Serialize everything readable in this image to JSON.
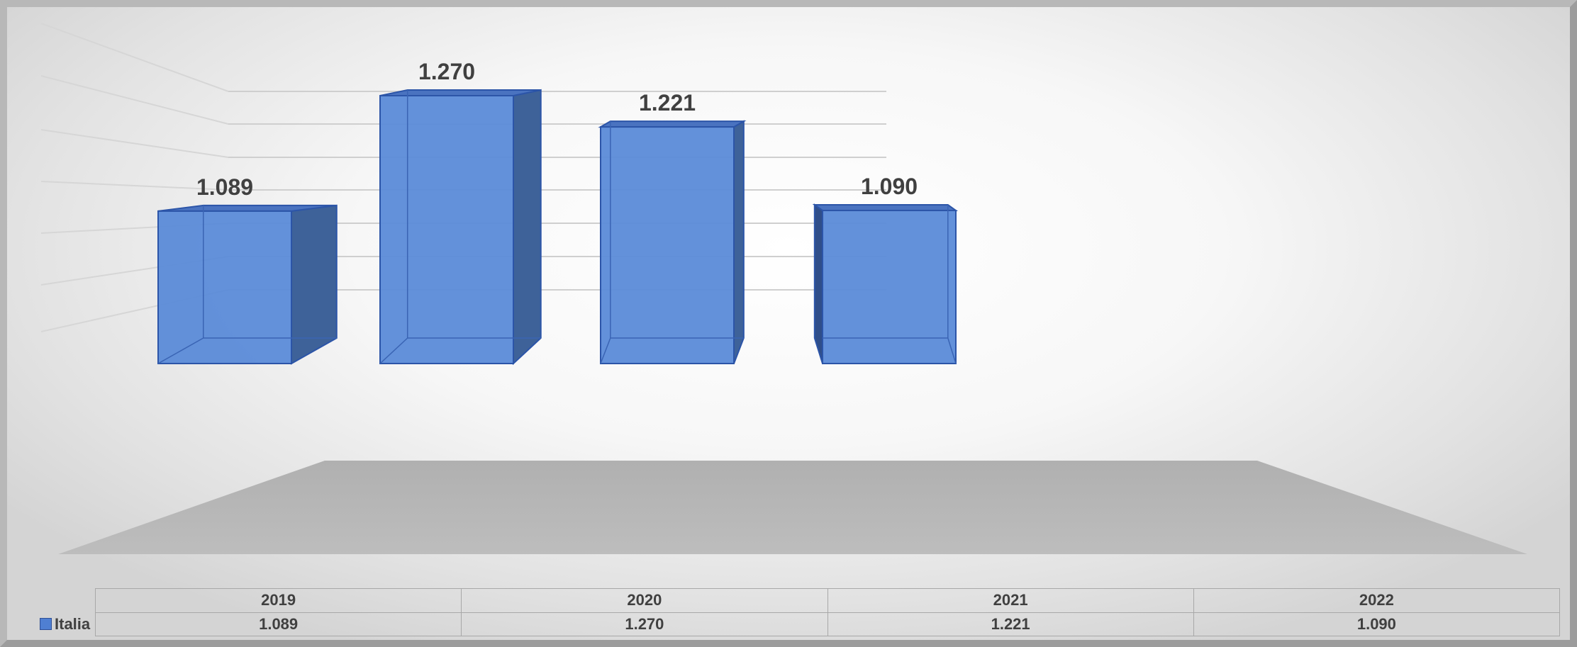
{
  "chart_data": {
    "type": "bar",
    "style": "3d-column",
    "categories": [
      "2019",
      "2020",
      "2021",
      "2022"
    ],
    "series": [
      {
        "name": "Italia",
        "values": [
          1.089,
          1.27,
          1.221,
          1.09
        ],
        "color": "#5B8BDA"
      }
    ],
    "data_labels": [
      "1.089",
      "1.270",
      "1.221",
      "1.090"
    ],
    "title": "",
    "xlabel": "",
    "ylabel": "",
    "grid": true,
    "legend": "data-table-left",
    "data_table": {
      "header": [
        "2019",
        "2020",
        "2021",
        "2022"
      ],
      "row_label": "Italia",
      "row_values": [
        "1.089",
        "1.270",
        "1.221",
        "1.090"
      ]
    }
  }
}
